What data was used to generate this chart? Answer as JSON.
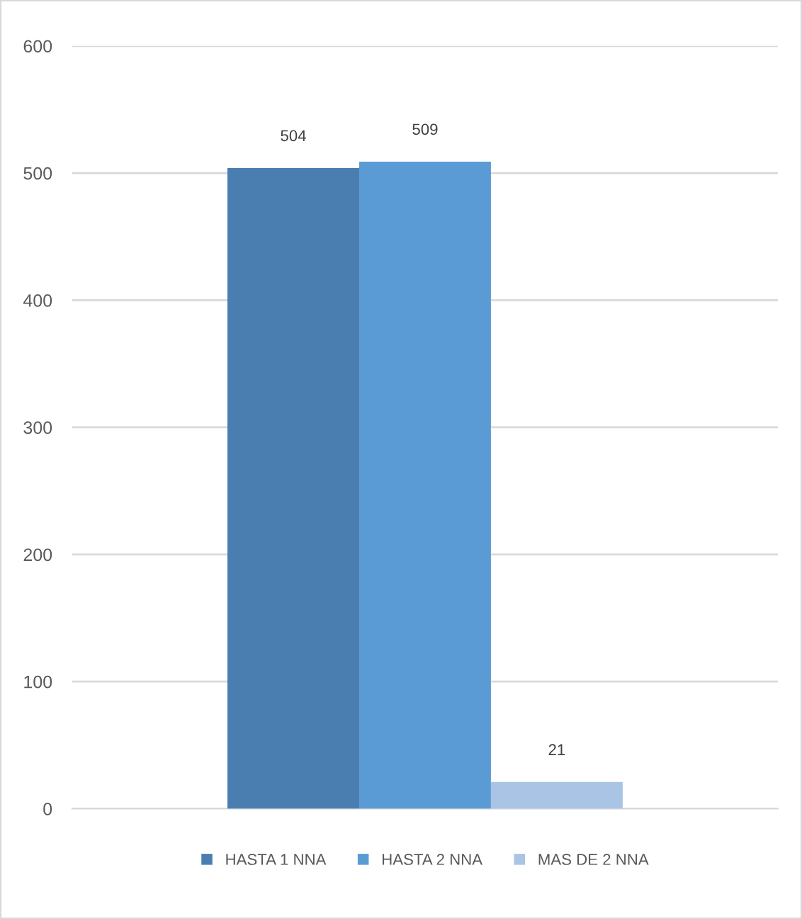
{
  "chart_data": {
    "type": "bar",
    "categories": [
      null
    ],
    "series": [
      {
        "name": "HASTA 1 NNA",
        "color": "#4a7eb1",
        "values": [
          504
        ]
      },
      {
        "name": "HASTA 2 NNA",
        "color": "#5b9bd5",
        "values": [
          509
        ]
      },
      {
        "name": "MAS DE 2 NNA",
        "color": "#a9c4e4",
        "values": [
          21
        ]
      }
    ],
    "ylim": [
      0,
      600
    ],
    "yticks": [
      0,
      100,
      200,
      300,
      400,
      500,
      600
    ],
    "grid": "y",
    "legend": "bottom",
    "data_labels": true,
    "tick_labels": "y"
  }
}
